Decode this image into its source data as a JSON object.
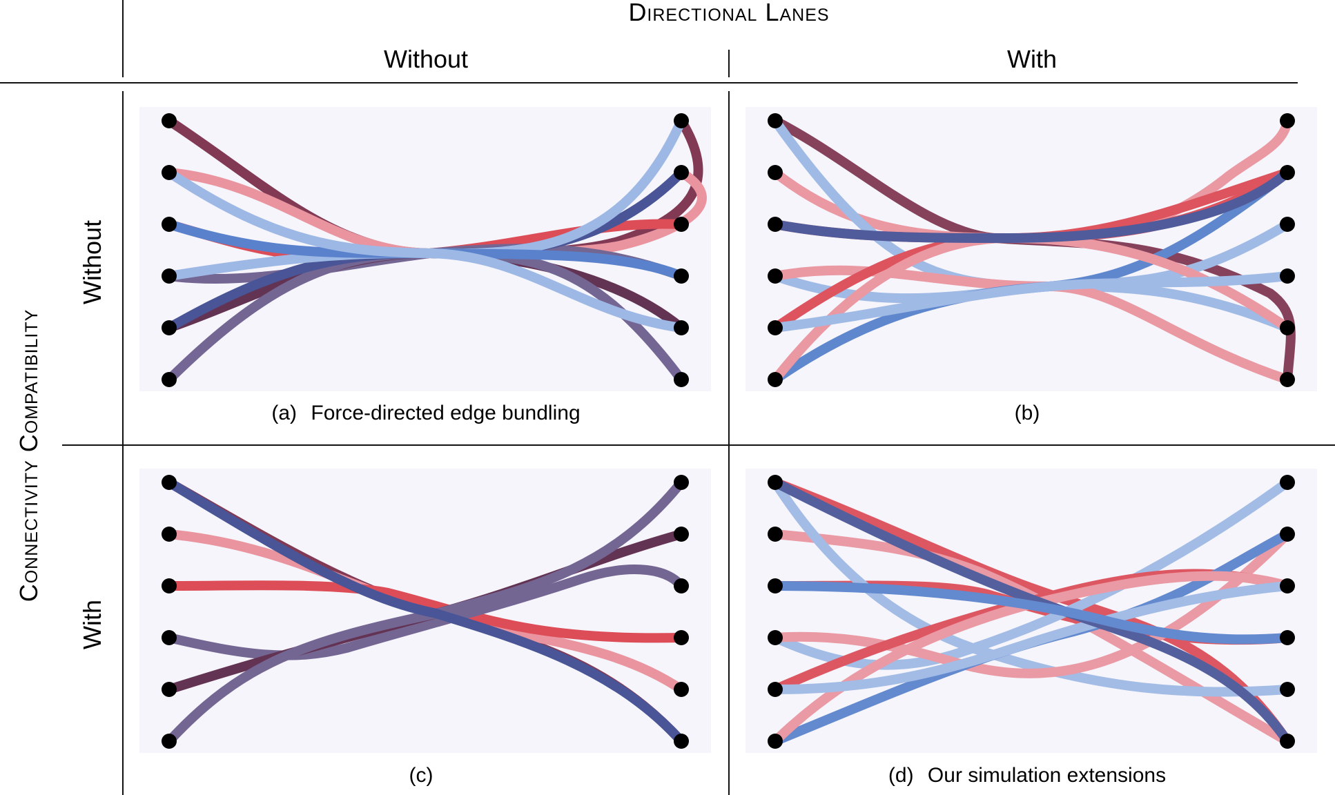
{
  "header": {
    "column_group": "Directional Lanes",
    "columns": [
      "Without",
      "With"
    ],
    "row_group": "Connectivity Compatibility",
    "rows": [
      "Without",
      "With"
    ]
  },
  "panels": [
    {
      "id": "a",
      "caption_label": "(a)",
      "caption_text": "Force-directed edge bundling",
      "edges": [
        {
          "color": "#6e1a38",
          "opacity": 0.85
        },
        {
          "color": "#e8848f",
          "opacity": 0.75
        },
        {
          "color": "#d8303c",
          "opacity": 0.85
        },
        {
          "color": "#5e4e82",
          "opacity": 0.8
        },
        {
          "color": "#4a1236",
          "opacity": 0.85
        },
        {
          "color": "#5e4e82",
          "opacity": 0.8
        }
      ]
    },
    {
      "id": "b",
      "caption_label": "(b)",
      "caption_text": "",
      "edges": []
    },
    {
      "id": "c",
      "caption_label": "(c)",
      "caption_text": "",
      "edges": []
    },
    {
      "id": "d",
      "caption_label": "(d)",
      "caption_text": "Our simulation extensions",
      "edges": []
    }
  ],
  "palette": {
    "red_dark": "#6e1a38",
    "red": "#d8303c",
    "red_light": "#e8848f",
    "blue_dark": "#2c3a86",
    "blue": "#3f6fc4",
    "blue_light": "#8eaee2",
    "purple": "#5e4e82",
    "node": "#000000"
  }
}
